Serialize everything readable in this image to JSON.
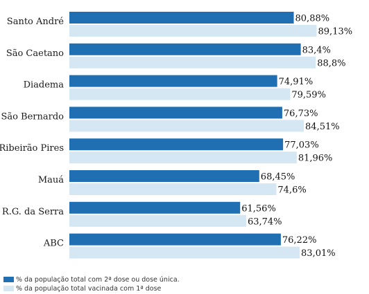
{
  "chart_data": {
    "type": "bar",
    "orientation": "horizontal",
    "categories": [
      "Santo André",
      "São Caetano",
      "Diadema",
      "São Bernardo",
      "Ribeirão Pires",
      "Mauá",
      "R.G. da Serra",
      "ABC"
    ],
    "series": [
      {
        "name": "% da população total com 2ª dose ou dose única.",
        "color": "#1f6fb2",
        "values": [
          80.88,
          83.4,
          74.91,
          76.73,
          77.03,
          68.45,
          61.56,
          76.22
        ],
        "labels": [
          "80,88%",
          "83,4%",
          "74,91%",
          "76,73%",
          "77,03%",
          "68,45%",
          "61,56%",
          "76,22%"
        ]
      },
      {
        "name": "% da população total vacinada com 1ª dose",
        "color": "#d6e7f4",
        "values": [
          89.13,
          88.8,
          79.59,
          84.51,
          81.96,
          74.6,
          63.74,
          83.01
        ],
        "labels": [
          "89,13%",
          "88,8%",
          "79,59%",
          "84,51%",
          "81,96%",
          "74,6%",
          "63,74%",
          "83,01%"
        ]
      }
    ],
    "xlim": [
      0,
      100
    ],
    "grid": false,
    "legend_position": "bottom-left"
  }
}
